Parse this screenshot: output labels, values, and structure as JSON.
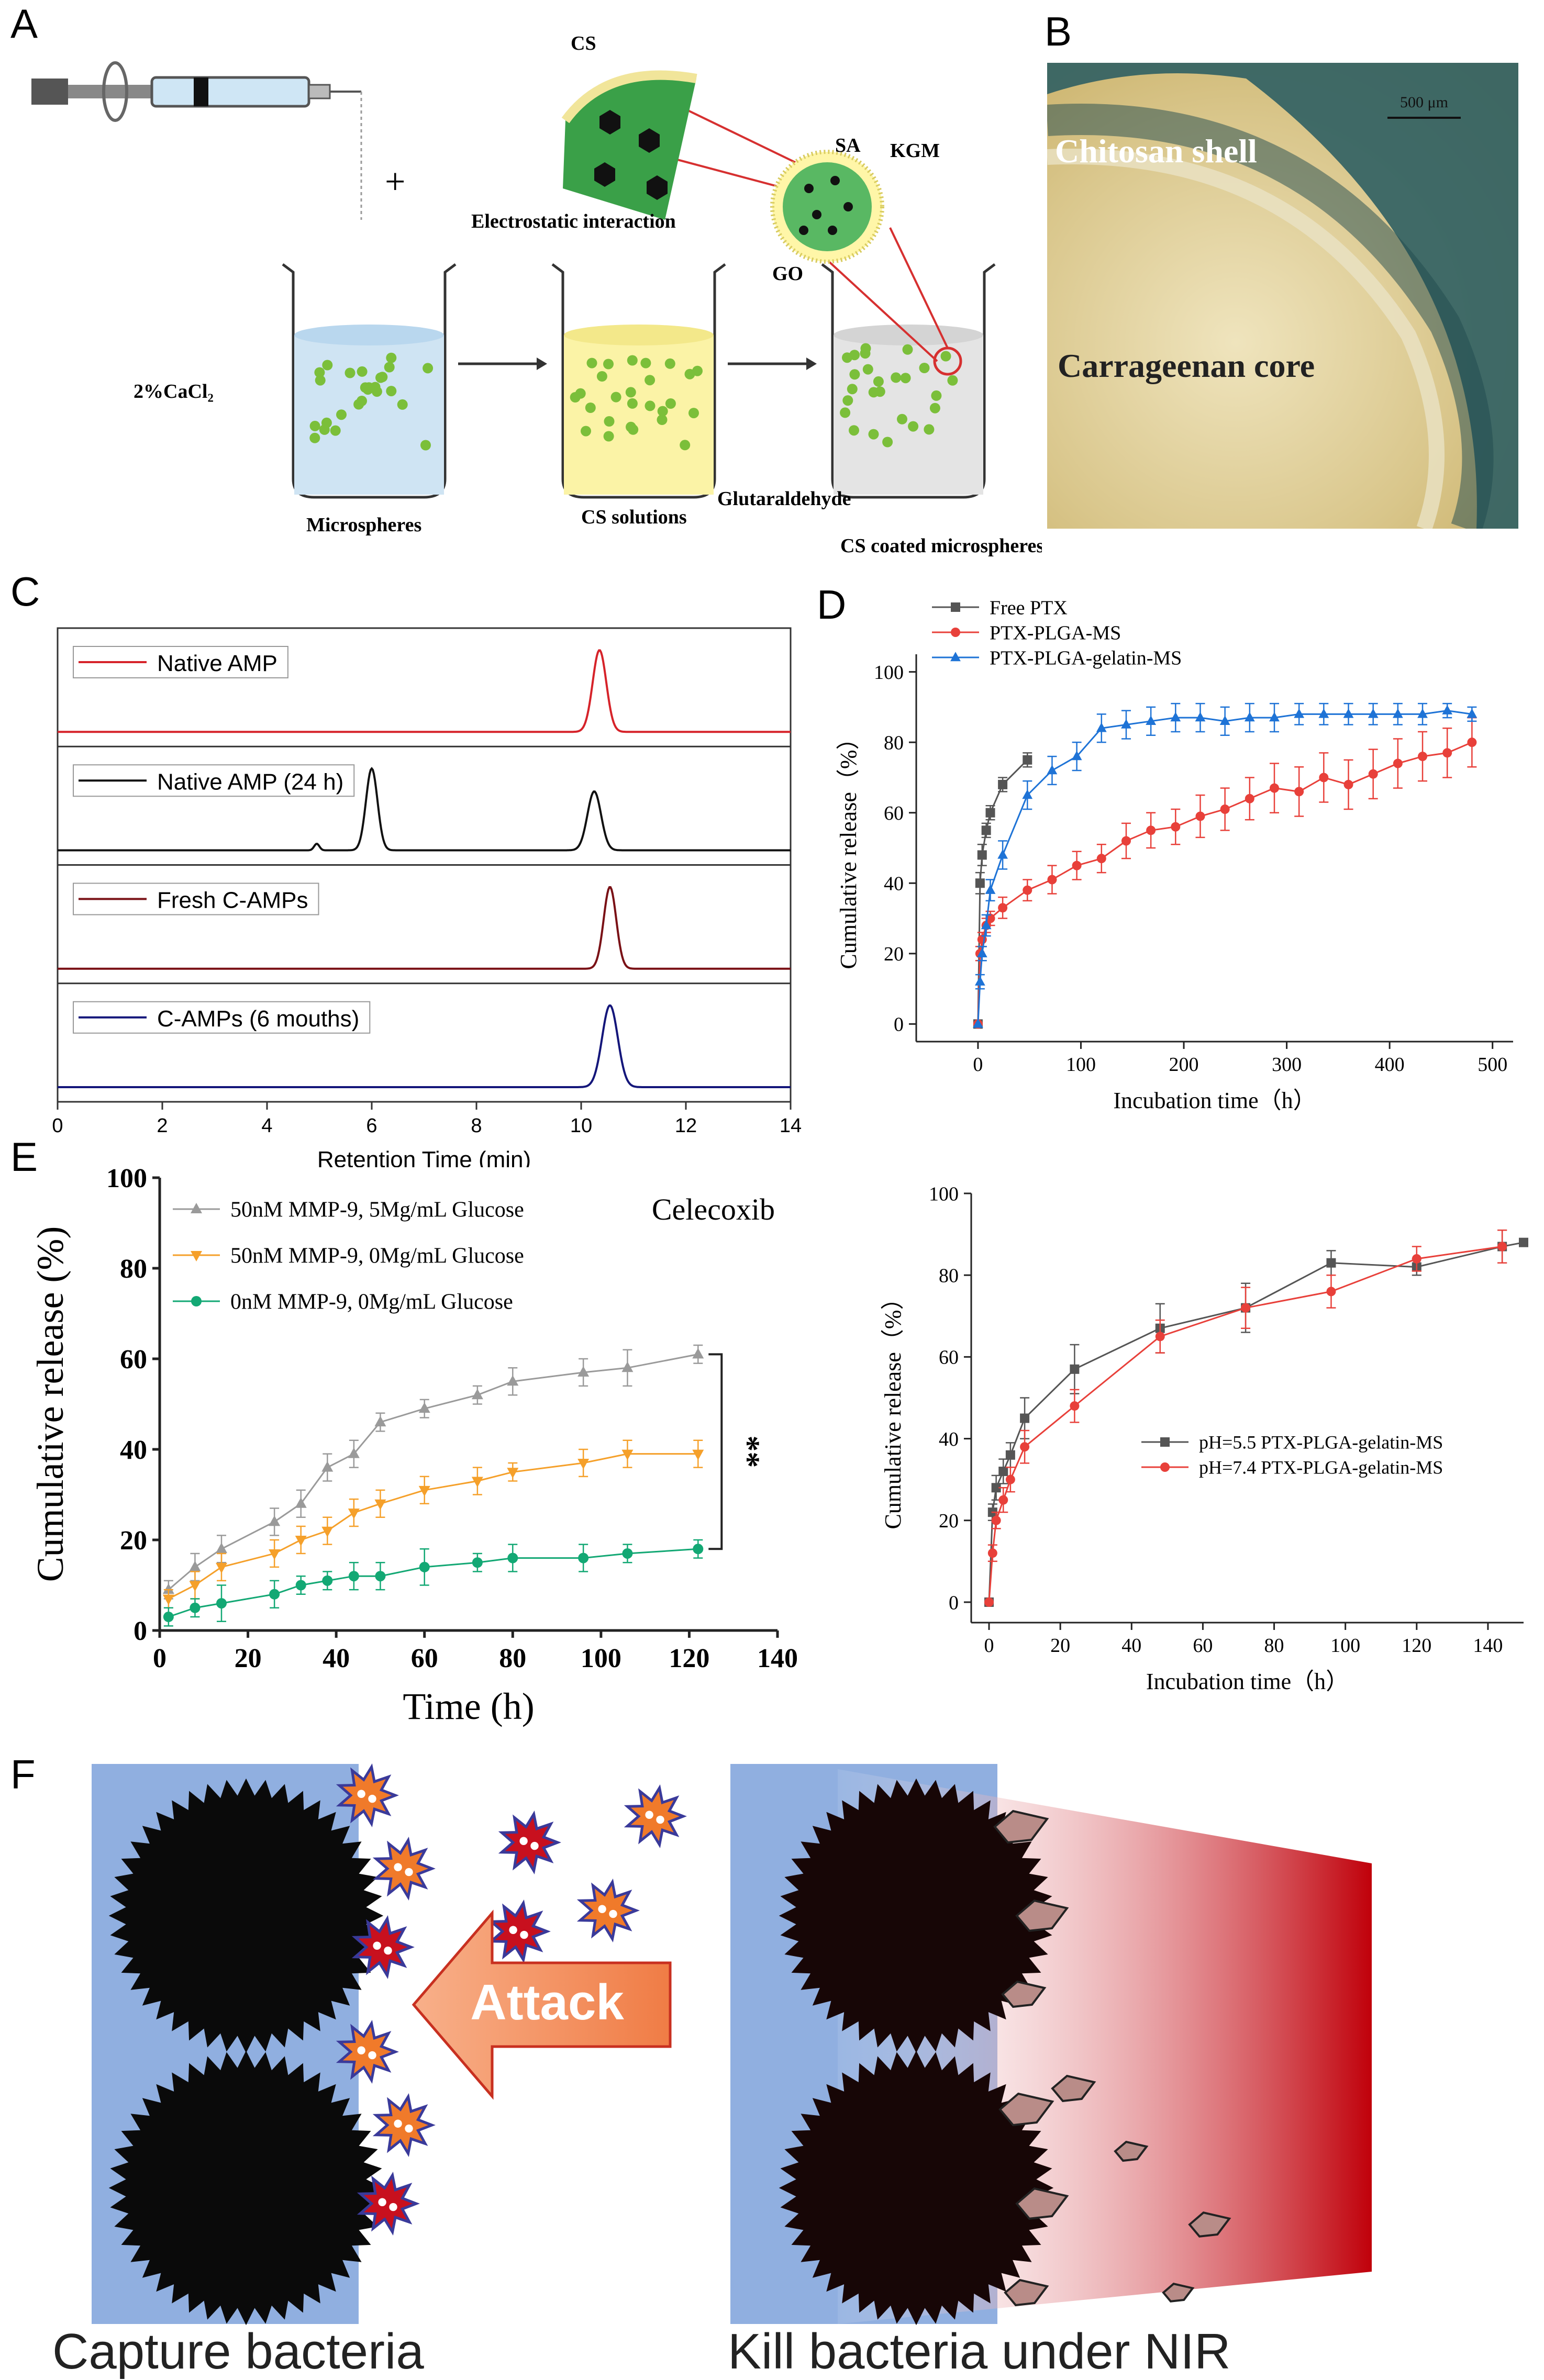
{
  "panel_letters": {
    "A": "A",
    "B": "B",
    "C": "C",
    "D": "D",
    "E": "E",
    "F": "F"
  },
  "schematic_A": {
    "cs": "CS",
    "electrostatic": "Electrostatic interaction",
    "sa": "SA",
    "kgm": "KGM",
    "go": "GO",
    "cacl2": "2%CaCl₂",
    "microspheres": "Microspheres",
    "cs_solutions": "CS solutions",
    "glutaraldehyde": "Glutaraldehyde",
    "coated": "CS coated microspheres",
    "plus": "+"
  },
  "photo_B": {
    "scale": "500 μm",
    "shell": "Chitosan shell",
    "core": "Carrageenan core"
  },
  "illustration_F": {
    "attack": "Attack",
    "capture": "Capture bacteria",
    "kill": "Kill bacteria under NIR"
  },
  "colors": {
    "red": "#d6232a",
    "black": "#111111",
    "darkred": "#7a1116",
    "navy": "#14167a",
    "gray": "#555555",
    "pink": "#e8403a",
    "blue": "#1e73d6",
    "lgray": "#9a9a9a",
    "orange": "#f5a02a",
    "green": "#13a874"
  },
  "chart_data": [
    {
      "id": "C",
      "type": "line",
      "xlabel": "Retention Time (min)",
      "xlim": [
        0,
        14
      ],
      "xticks": [
        0,
        2,
        4,
        6,
        8,
        10,
        12,
        14
      ],
      "series": [
        {
          "name": "Native AMP",
          "color": "#d6232a",
          "peaks": [
            [
              10.35,
              1.0,
              0.13
            ]
          ]
        },
        {
          "name": "Native AMP (24 h)",
          "color": "#111111",
          "peaks": [
            [
              6.0,
              1.0,
              0.11
            ],
            [
              10.25,
              0.72,
              0.13
            ],
            [
              4.95,
              0.08,
              0.05
            ]
          ]
        },
        {
          "name": "Fresh C-AMPs",
          "color": "#7a1116",
          "peaks": [
            [
              10.55,
              1.0,
              0.12
            ]
          ]
        },
        {
          "name": "C-AMPs (6 mouths)",
          "color": "#14167a",
          "peaks": [
            [
              10.55,
              1.0,
              0.15
            ]
          ]
        }
      ]
    },
    {
      "id": "D",
      "type": "line",
      "xlabel": "Incubation time（h）",
      "ylabel": "Cumulative release（%）",
      "xlim": [
        -60,
        520
      ],
      "ylim": [
        -5,
        105
      ],
      "xticks": [
        0,
        100,
        200,
        300,
        400,
        500
      ],
      "yticks": [
        0,
        20,
        40,
        60,
        80,
        100
      ],
      "legend_position": "top-left",
      "series": [
        {
          "name": "Free PTX",
          "color": "#555555",
          "marker": "square",
          "x": [
            0,
            2,
            4,
            8,
            12,
            24,
            48
          ],
          "y": [
            0,
            40,
            48,
            55,
            60,
            68,
            75
          ],
          "err": [
            0,
            3,
            3,
            2,
            2,
            2,
            2
          ]
        },
        {
          "name": "PTX-PLGA-MS",
          "color": "#e8403a",
          "marker": "circle",
          "x": [
            0,
            2,
            4,
            8,
            12,
            24,
            48,
            72,
            96,
            120,
            144,
            168,
            192,
            216,
            240,
            264,
            288,
            312,
            336,
            360,
            384,
            408,
            432,
            456,
            480
          ],
          "y": [
            0,
            20,
            24,
            28,
            30,
            33,
            38,
            41,
            45,
            47,
            52,
            55,
            56,
            59,
            61,
            64,
            67,
            66,
            70,
            68,
            71,
            74,
            76,
            77,
            80
          ],
          "err": [
            0,
            2,
            2,
            2,
            2,
            3,
            3,
            4,
            4,
            4,
            5,
            5,
            5,
            6,
            6,
            6,
            7,
            7,
            7,
            7,
            7,
            7,
            7,
            7,
            7
          ]
        },
        {
          "name": "PTX-PLGA-gelatin-MS",
          "color": "#1e73d6",
          "marker": "triangle",
          "x": [
            0,
            2,
            4,
            8,
            12,
            24,
            48,
            72,
            96,
            120,
            144,
            168,
            192,
            216,
            240,
            264,
            288,
            312,
            336,
            360,
            384,
            408,
            432,
            456,
            480
          ],
          "y": [
            0,
            12,
            20,
            28,
            38,
            48,
            65,
            72,
            76,
            84,
            85,
            86,
            87,
            87,
            86,
            87,
            87,
            88,
            88,
            88,
            88,
            88,
            88,
            89,
            88
          ],
          "err": [
            0,
            2,
            2,
            3,
            3,
            4,
            4,
            4,
            4,
            4,
            4,
            4,
            4,
            4,
            4,
            4,
            4,
            3,
            3,
            3,
            3,
            3,
            3,
            2,
            2
          ]
        }
      ]
    },
    {
      "id": "E",
      "type": "line",
      "title": "Celecoxib",
      "xlabel": "Time (h)",
      "ylabel": "Cumulative release (%)",
      "xlim": [
        0,
        140
      ],
      "ylim": [
        0,
        100
      ],
      "xticks": [
        0,
        20,
        40,
        60,
        80,
        100,
        120,
        140
      ],
      "yticks": [
        0,
        20,
        40,
        60,
        80,
        100
      ],
      "legend_position": "top-left",
      "annotation": "**",
      "series": [
        {
          "name": "50nM MMP-9, 5Mg/mL Glucose",
          "color": "#9a9a9a",
          "marker": "triangle",
          "x": [
            2,
            8,
            14,
            26,
            32,
            38,
            44,
            50,
            60,
            72,
            80,
            96,
            106,
            122
          ],
          "y": [
            9,
            14,
            18,
            24,
            28,
            36,
            39,
            46,
            49,
            52,
            55,
            57,
            58,
            61
          ],
          "err": [
            2,
            3,
            3,
            3,
            3,
            3,
            3,
            2,
            2,
            2,
            3,
            3,
            4,
            2
          ]
        },
        {
          "name": "50nM MMP-9, 0Mg/mL Glucose",
          "color": "#f5a02a",
          "marker": "triangle-down",
          "x": [
            2,
            8,
            14,
            26,
            32,
            38,
            44,
            50,
            60,
            72,
            80,
            96,
            106,
            122
          ],
          "y": [
            7,
            10,
            14,
            17,
            20,
            22,
            26,
            28,
            31,
            33,
            35,
            37,
            39,
            39
          ],
          "err": [
            2,
            3,
            3,
            3,
            3,
            3,
            3,
            3,
            3,
            3,
            2,
            3,
            3,
            3
          ]
        },
        {
          "name": "0nM MMP-9, 0Mg/mL Glucose",
          "color": "#13a874",
          "marker": "circle",
          "x": [
            2,
            8,
            14,
            26,
            32,
            38,
            44,
            50,
            60,
            72,
            80,
            96,
            106,
            122
          ],
          "y": [
            3,
            5,
            6,
            8,
            10,
            11,
            12,
            12,
            14,
            15,
            16,
            16,
            17,
            18
          ],
          "err": [
            2,
            2,
            4,
            3,
            2,
            2,
            3,
            3,
            4,
            2,
            3,
            3,
            2,
            2
          ]
        }
      ]
    },
    {
      "id": "D2",
      "type": "line",
      "xlabel": "Incubation time（h）",
      "ylabel": "Cumulative release（%）",
      "xlim": [
        -5,
        150
      ],
      "ylim": [
        -5,
        100
      ],
      "xticks": [
        0,
        20,
        40,
        60,
        80,
        100,
        120,
        140
      ],
      "yticks": [
        0,
        20,
        40,
        60,
        80,
        100
      ],
      "legend_position": "center-right",
      "series": [
        {
          "name": "pH=5.5 PTX-PLGA-gelatin-MS",
          "color": "#555555",
          "marker": "square",
          "x": [
            0,
            1,
            2,
            4,
            6,
            10,
            24,
            48,
            72,
            96,
            120,
            144,
            150
          ],
          "y": [
            0,
            22,
            28,
            32,
            36,
            45,
            57,
            67,
            72,
            83,
            82,
            87,
            88
          ],
          "err": [
            0,
            2,
            3,
            3,
            3,
            5,
            6,
            6,
            6,
            3,
            2,
            4,
            0
          ]
        },
        {
          "name": "pH=7.4 PTX-PLGA-gelatin-MS",
          "color": "#e8403a",
          "marker": "circle",
          "x": [
            0,
            1,
            2,
            4,
            6,
            10,
            24,
            48,
            72,
            96,
            120,
            144
          ],
          "y": [
            0,
            12,
            20,
            25,
            30,
            38,
            48,
            65,
            72,
            76,
            84,
            87
          ],
          "err": [
            0,
            2,
            2,
            3,
            3,
            4,
            4,
            4,
            5,
            4,
            3,
            4
          ]
        }
      ]
    }
  ]
}
